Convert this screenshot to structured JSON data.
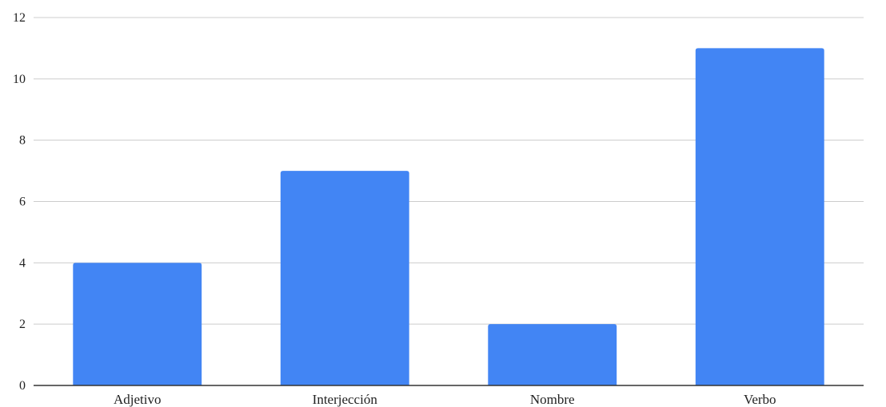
{
  "chart_data": {
    "type": "bar",
    "title": "",
    "xlabel": "",
    "ylabel": "",
    "categories": [
      "Adjetivo",
      "Interjección",
      "Nombre",
      "Verbo"
    ],
    "values": [
      4,
      7,
      2,
      11
    ],
    "ylim": [
      0,
      12
    ],
    "yticks": [
      "0",
      "2",
      "4",
      "6",
      "8",
      "10",
      "12"
    ],
    "grid": true,
    "legend": "none",
    "colors": {
      "bar": "#4285f4",
      "grid": "#cccccc",
      "axis": "#333333"
    }
  }
}
